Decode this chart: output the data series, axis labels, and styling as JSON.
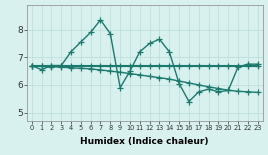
{
  "xlabel": "Humidex (Indice chaleur)",
  "ylabel": "",
  "xlim": [
    -0.5,
    23.5
  ],
  "ylim": [
    4.7,
    8.9
  ],
  "xticks": [
    0,
    1,
    2,
    3,
    4,
    5,
    6,
    7,
    8,
    9,
    10,
    11,
    12,
    13,
    14,
    15,
    16,
    17,
    18,
    19,
    20,
    21,
    22,
    23
  ],
  "yticks": [
    5,
    6,
    7,
    8
  ],
  "bg_color": "#d8f0ee",
  "grid_color": "#b8dcd8",
  "line_color": "#1a7a6e",
  "line_width": 1.0,
  "marker": "+",
  "marker_size": 4,
  "series1": [
    6.7,
    6.55,
    6.7,
    6.7,
    7.2,
    7.55,
    7.9,
    8.35,
    7.85,
    5.9,
    6.5,
    7.2,
    7.5,
    7.65,
    7.2,
    6.05,
    5.4,
    5.75,
    5.85,
    5.75,
    5.8,
    6.65,
    6.75,
    6.75
  ],
  "series2": [
    6.7,
    6.7,
    6.7,
    6.7,
    6.7,
    6.7,
    6.7,
    6.7,
    6.7,
    6.7,
    6.7,
    6.7,
    6.7,
    6.7,
    6.7,
    6.7,
    6.7,
    6.7,
    6.7,
    6.7,
    6.7,
    6.7,
    6.7,
    6.7
  ],
  "series3": [
    6.7,
    6.68,
    6.66,
    6.64,
    6.62,
    6.6,
    6.58,
    6.54,
    6.5,
    6.46,
    6.41,
    6.36,
    6.31,
    6.26,
    6.21,
    6.14,
    6.07,
    6.0,
    5.93,
    5.87,
    5.81,
    5.77,
    5.75,
    5.73
  ]
}
